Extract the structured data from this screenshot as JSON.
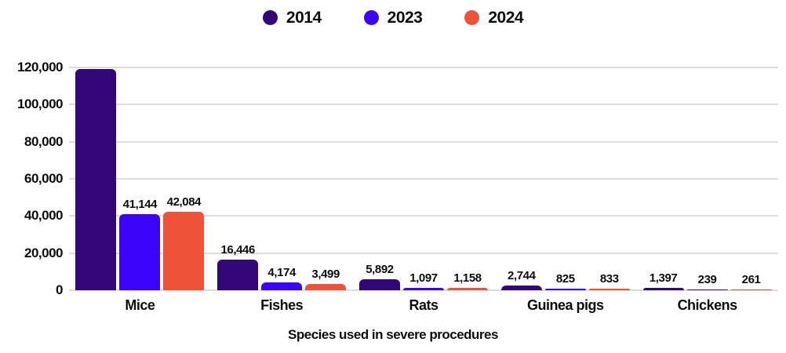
{
  "colors": {
    "series_2014": "#320779",
    "series_2023": "#3c05fa",
    "series_2024": "#ee5239",
    "gridline": "#dcdcdc",
    "text": "#0d0d0d",
    "background": "#ffffff"
  },
  "chart_data": {
    "type": "bar",
    "title": "",
    "xlabel": "Species used in severe procedures",
    "ylabel": "",
    "ylim": [
      0,
      120000
    ],
    "grid": "horizontal",
    "legend_position": "top-center",
    "yticks": [
      {
        "value": 0,
        "label": "0"
      },
      {
        "value": 20000,
        "label": "20,000"
      },
      {
        "value": 40000,
        "label": "40,000"
      },
      {
        "value": 60000,
        "label": "60,000"
      },
      {
        "value": 80000,
        "label": "80,000"
      },
      {
        "value": 100000,
        "label": "100,000"
      },
      {
        "value": 120000,
        "label": "120,000"
      }
    ],
    "categories": [
      "Mice",
      "Fishes",
      "Rats",
      "Guinea pigs",
      "Chickens"
    ],
    "series": [
      {
        "name": "2014",
        "color": "#320779",
        "values": [
          119000,
          16446,
          5892,
          2744,
          1397
        ],
        "value_labels": [
          "",
          "16,446",
          "5,892",
          "2,744",
          "1,397"
        ],
        "first_value_estimated_from_axis": true
      },
      {
        "name": "2023",
        "color": "#3c05fa",
        "values": [
          41144,
          4174,
          1097,
          825,
          239
        ],
        "value_labels": [
          "41,144",
          "4,174",
          "1,097",
          "825",
          "239"
        ]
      },
      {
        "name": "2024",
        "color": "#ee5239",
        "values": [
          42084,
          3499,
          1158,
          833,
          261
        ],
        "value_labels": [
          "42,084",
          "3,499",
          "1,158",
          "833",
          "261"
        ]
      }
    ]
  }
}
